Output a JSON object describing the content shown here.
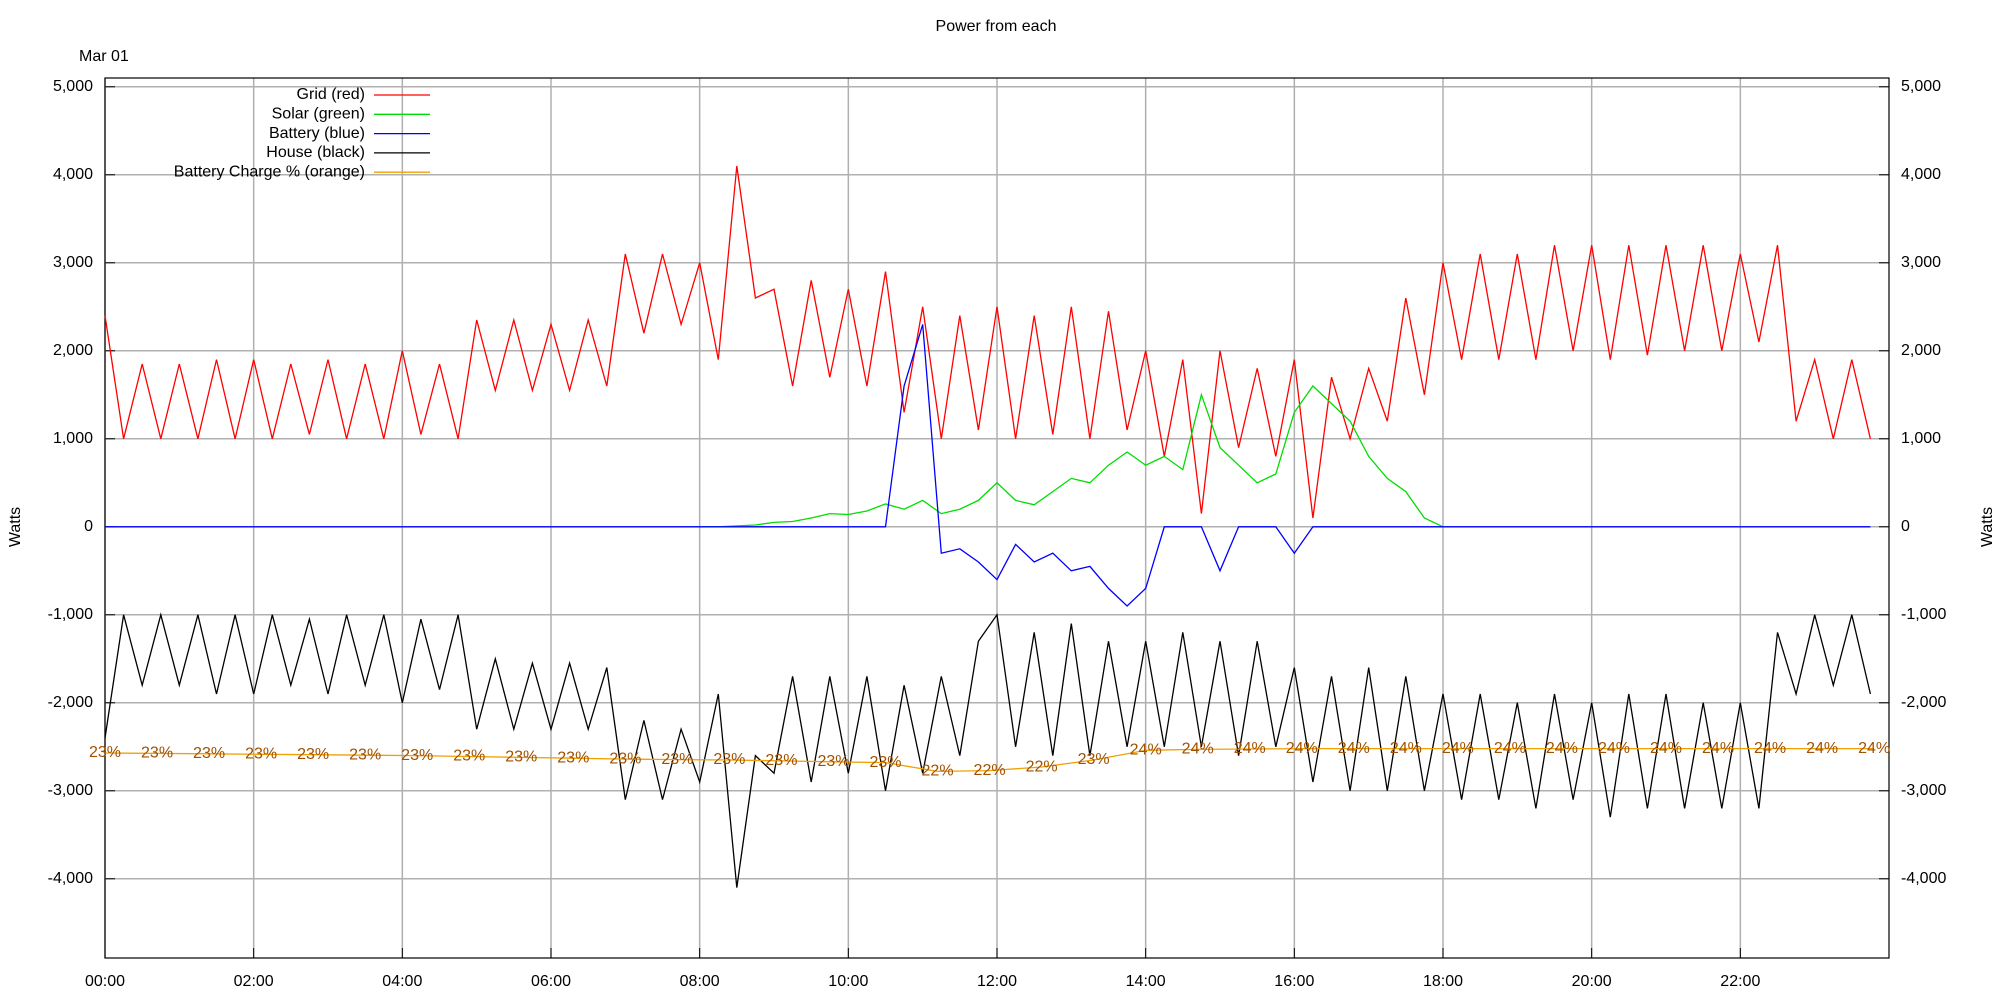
{
  "chart_data": {
    "type": "line",
    "title": "Power from each",
    "subtitle": "Mar 01",
    "ylabel": "Watts",
    "y2label": "Watts",
    "xlim": [
      0,
      24
    ],
    "xticks": [
      {
        "value": 0,
        "label": "00:00"
      },
      {
        "value": 2,
        "label": "02:00"
      },
      {
        "value": 4,
        "label": "04:00"
      },
      {
        "value": 6,
        "label": "06:00"
      },
      {
        "value": 8,
        "label": "08:00"
      },
      {
        "value": 10,
        "label": "10:00"
      },
      {
        "value": 12,
        "label": "12:00"
      },
      {
        "value": 14,
        "label": "14:00"
      },
      {
        "value": 16,
        "label": "16:00"
      },
      {
        "value": 18,
        "label": "18:00"
      },
      {
        "value": 20,
        "label": "20:00"
      },
      {
        "value": 22,
        "label": "22:00"
      }
    ],
    "ylim": [
      -4900,
      5100
    ],
    "yticks": [
      {
        "value": 5000,
        "label": "5,000"
      },
      {
        "value": 4000,
        "label": "4,000"
      },
      {
        "value": 3000,
        "label": "3,000"
      },
      {
        "value": 2000,
        "label": "2,000"
      },
      {
        "value": 1000,
        "label": "1,000"
      },
      0,
      {
        "value": -1000,
        "label": "-1,000"
      },
      {
        "value": -2000,
        "label": "-2,000"
      },
      {
        "value": -3000,
        "label": "-3,000"
      },
      {
        "value": -4000,
        "label": "-4,000"
      }
    ],
    "grid": true,
    "legend": "upper left",
    "x": [
      0,
      0.25,
      0.5,
      0.75,
      1,
      1.25,
      1.5,
      1.75,
      2,
      2.25,
      2.5,
      2.75,
      3,
      3.25,
      3.5,
      3.75,
      4,
      4.25,
      4.5,
      4.75,
      5,
      5.25,
      5.5,
      5.75,
      6,
      6.25,
      6.5,
      6.75,
      7,
      7.25,
      7.5,
      7.75,
      8,
      8.25,
      8.5,
      8.75,
      9,
      9.25,
      9.5,
      9.75,
      10,
      10.25,
      10.5,
      10.75,
      11,
      11.25,
      11.5,
      11.75,
      12,
      12.25,
      12.5,
      12.75,
      13,
      13.25,
      13.5,
      13.75,
      14,
      14.25,
      14.5,
      14.75,
      15,
      15.25,
      15.5,
      15.75,
      16,
      16.25,
      16.5,
      16.75,
      17,
      17.25,
      17.5,
      17.75,
      18,
      18.25,
      18.5,
      18.75,
      19,
      19.25,
      19.5,
      19.75,
      20,
      20.25,
      20.5,
      20.75,
      21,
      21.25,
      21.5,
      21.75,
      22,
      22.25,
      22.5,
      22.75,
      23,
      23.25,
      23.5,
      23.75
    ],
    "series": [
      {
        "name": "Grid (red)",
        "color": "#ff0000",
        "values": [
          2400,
          1000,
          1850,
          1000,
          1850,
          1000,
          1900,
          1000,
          1900,
          1000,
          1850,
          1050,
          1900,
          1000,
          1850,
          1000,
          2000,
          1050,
          1850,
          1000,
          2350,
          1550,
          2350,
          1550,
          2300,
          1550,
          2350,
          1600,
          3100,
          2200,
          3100,
          2300,
          3000,
          1900,
          4100,
          2600,
          2700,
          1600,
          2800,
          1700,
          2700,
          1600,
          2900,
          1300,
          2500,
          1000,
          2400,
          1100,
          2500,
          1000,
          2400,
          1050,
          2500,
          1000,
          2450,
          1100,
          2000,
          800,
          1900,
          150,
          2000,
          900,
          1800,
          800,
          1900,
          100,
          1700,
          1000,
          1800,
          1200,
          2600,
          1500,
          3000,
          1900,
          3100,
          1900,
          3100,
          1900,
          3200,
          2000,
          3200,
          1900,
          3200,
          1950,
          3200,
          2000,
          3200,
          2000,
          3100,
          2100,
          3200,
          1200,
          1900,
          1000,
          1900,
          1000
        ]
      },
      {
        "name": "Solar (green)",
        "color": "#00dd00",
        "values": [
          null,
          null,
          null,
          null,
          null,
          null,
          null,
          null,
          null,
          null,
          null,
          null,
          null,
          null,
          null,
          null,
          null,
          null,
          null,
          null,
          null,
          null,
          null,
          null,
          null,
          null,
          null,
          null,
          null,
          null,
          null,
          null,
          0,
          0,
          10,
          20,
          50,
          60,
          100,
          150,
          140,
          180,
          260,
          200,
          300,
          150,
          200,
          300,
          500,
          300,
          250,
          400,
          550,
          500,
          700,
          850,
          700,
          800,
          650,
          1500,
          900,
          700,
          500,
          600,
          1300,
          1600,
          1400,
          1200,
          800,
          550,
          400,
          100,
          0,
          null,
          null,
          null,
          null,
          null,
          null,
          null,
          null,
          null,
          null,
          null,
          null,
          null,
          null,
          null,
          null,
          null,
          null,
          null,
          null,
          null,
          null,
          null
        ]
      },
      {
        "name": "Battery (blue)",
        "color": "#0000ff",
        "values": [
          0,
          0,
          0,
          0,
          0,
          0,
          0,
          0,
          0,
          0,
          0,
          0,
          0,
          0,
          0,
          0,
          0,
          0,
          0,
          0,
          0,
          0,
          0,
          0,
          0,
          0,
          0,
          0,
          0,
          0,
          0,
          0,
          0,
          0,
          0,
          0,
          0,
          0,
          0,
          0,
          0,
          0,
          0,
          1600,
          2300,
          -300,
          -250,
          -400,
          -600,
          -200,
          -400,
          -300,
          -500,
          -450,
          -700,
          -900,
          -700,
          0,
          0,
          0,
          -500,
          0,
          0,
          0,
          -300,
          0,
          0,
          0,
          0,
          0,
          0,
          0,
          0,
          0,
          0,
          0,
          0,
          0,
          0,
          0,
          0,
          0,
          0,
          0,
          0,
          0,
          0,
          0,
          0,
          0,
          0,
          0,
          0,
          0,
          0,
          0
        ]
      },
      {
        "name": "House (black)",
        "color": "#000000",
        "values": [
          -2400,
          -1000,
          -1800,
          -1000,
          -1800,
          -1000,
          -1900,
          -1000,
          -1900,
          -1000,
          -1800,
          -1050,
          -1900,
          -1000,
          -1800,
          -1000,
          -2000,
          -1050,
          -1850,
          -1000,
          -2300,
          -1500,
          -2300,
          -1550,
          -2300,
          -1550,
          -2300,
          -1600,
          -3100,
          -2200,
          -3100,
          -2300,
          -2900,
          -1900,
          -4100,
          -2600,
          -2800,
          -1700,
          -2900,
          -1700,
          -2800,
          -1700,
          -3000,
          -1800,
          -2800,
          -1700,
          -2600,
          -1300,
          -1000,
          -2500,
          -1200,
          -2600,
          -1100,
          -2600,
          -1300,
          -2500,
          -1300,
          -2500,
          -1200,
          -2500,
          -1300,
          -2600,
          -1300,
          -2500,
          -1600,
          -2900,
          -1700,
          -3000,
          -1600,
          -3000,
          -1700,
          -3000,
          -1900,
          -3100,
          -1900,
          -3100,
          -2000,
          -3200,
          -1900,
          -3100,
          -2000,
          -3300,
          -1900,
          -3200,
          -1900,
          -3200,
          -2000,
          -3200,
          -2000,
          -3200,
          -1200,
          -1900,
          -1000,
          -1800,
          -1000,
          -1900
        ]
      },
      {
        "name": "Battery Charge % (orange)",
        "color": "#f0a000",
        "label_color": "#a05000",
        "x": [
          0,
          0.7,
          1.4,
          2.1,
          2.8,
          3.5,
          4.2,
          4.9,
          5.6,
          6.3,
          7.0,
          7.7,
          8.4,
          9.1,
          9.8,
          10.5,
          11.2,
          11.9,
          12.6,
          13.3,
          14.0,
          14.7,
          15.4,
          16.1,
          16.8,
          17.5,
          18.2,
          18.9,
          19.6,
          20.3,
          21.0,
          21.7,
          22.4,
          23.1,
          23.8
        ],
        "values": [
          -2570,
          -2575,
          -2580,
          -2585,
          -2590,
          -2595,
          -2600,
          -2610,
          -2620,
          -2630,
          -2640,
          -2645,
          -2650,
          -2660,
          -2670,
          -2680,
          -2780,
          -2770,
          -2730,
          -2650,
          -2540,
          -2530,
          -2525,
          -2520,
          -2520,
          -2520,
          -2520,
          -2520,
          -2520,
          -2520,
          -2520,
          -2520,
          -2520,
          -2520,
          -2520
        ],
        "value_labels": [
          "23%",
          "23%",
          "23%",
          "23%",
          "23%",
          "23%",
          "23%",
          "23%",
          "23%",
          "23%",
          "23%",
          "23%",
          "23%",
          "23%",
          "23%",
          "23%",
          "22%",
          "22%",
          "22%",
          "23%",
          "24%",
          "24%",
          "24%",
          "24%",
          "24%",
          "24%",
          "24%",
          "24%",
          "24%",
          "24%",
          "24%",
          "24%",
          "24%",
          "24%",
          "24%"
        ]
      }
    ]
  }
}
